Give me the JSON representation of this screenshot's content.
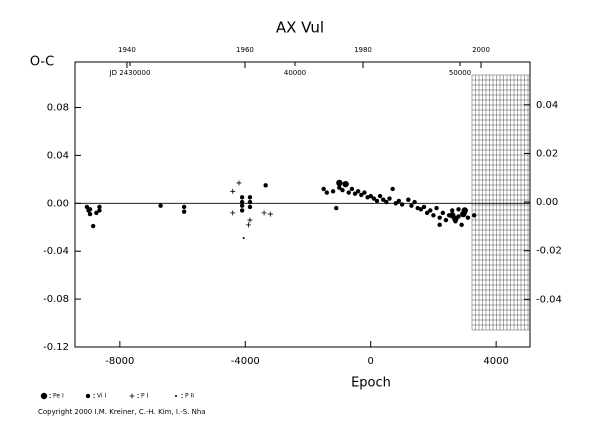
{
  "chart_data": {
    "type": "scatter",
    "title": "AX Vul",
    "ylabel": "O-C",
    "xlabel": "Epoch",
    "footer": "Copyright 2000 I.M. Kreiner, C.-H. Kim, I.-S. Nha",
    "xlim": [
      -9430,
      5080
    ],
    "xticks": [
      -8000,
      -4000,
      0,
      4000
    ],
    "ylim": [
      -0.12,
      0.118
    ],
    "yticks": [
      {
        "value": 0.08,
        "label": "0.08"
      },
      {
        "value": 0.04,
        "label": "0.04"
      },
      {
        "value": 0,
        "label": "0.00"
      },
      {
        "value": -0.04,
        "label": "-0.04"
      },
      {
        "value": -0.08,
        "label": "-0.08"
      },
      {
        "value": -0.12,
        "label": "-0.12"
      }
    ],
    "y2lim": [
      -0.0596,
      0.0576
    ],
    "y2ticks": [
      0.04,
      0.02,
      {
        "value": 0,
        "label": "0.00"
      },
      -0.02,
      -0.04
    ],
    "yearlim": [
      1931.2,
      2008.3
    ],
    "yearticks": [
      1940,
      1960,
      1980,
      2000
    ],
    "jdlim": [
      2426667,
      2454242
    ],
    "jdticks": [
      {
        "value": 2430000,
        "label": "JD 2430000"
      },
      {
        "value": 2440000,
        "label": "40000"
      },
      {
        "value": 2450000,
        "label": "50000"
      }
    ],
    "hline": 0,
    "series": [
      {
        "name": "Pe I",
        "color": "#000000",
        "marker": "large-dot",
        "x": [
          -1000,
          -800,
          2600,
          2950,
          3000,
          2700
        ],
        "values": [
          0.017,
          0.016,
          -0.01,
          -0.009,
          -0.006,
          -0.013
        ]
      },
      {
        "name": "Vi I",
        "color": "#000000",
        "marker": "dot",
        "x": [
          -9050,
          -9000,
          -8950,
          -8850,
          -8750,
          -8650,
          -8650,
          -8950,
          -6700,
          -5950,
          -5950,
          -4100,
          -4100,
          -4100,
          -3850,
          -3850,
          -3850,
          -3350,
          -4100,
          -1500,
          -1400,
          -1200,
          -1000,
          -900,
          -700,
          -600,
          -500,
          -400,
          -300,
          -200,
          -100,
          0,
          100,
          200,
          300,
          400,
          500,
          600,
          700,
          800,
          900,
          1000,
          1200,
          1300,
          1400,
          1600,
          1700,
          1800,
          1900,
          2000,
          2100,
          2200,
          2300,
          2400,
          2500,
          2600,
          2700,
          2800,
          2900,
          3000,
          3100,
          3300,
          2200,
          -1100,
          1500,
          2800
        ],
        "values": [
          -0.003,
          -0.006,
          -0.009,
          -0.019,
          -0.008,
          -0.003,
          -0.006,
          -0.005,
          -0.002,
          -0.003,
          -0.007,
          0.005,
          0.001,
          -0.002,
          0.005,
          0.001,
          -0.003,
          0.015,
          -0.006,
          0.012,
          0.009,
          0.01,
          0.013,
          0.011,
          0.009,
          0.012,
          0.008,
          0.01,
          0.007,
          0.009,
          0.005,
          0.006,
          0.004,
          0.002,
          0.006,
          0.003,
          0.001,
          0.004,
          0.012,
          0.0,
          0.002,
          -0.001,
          0.003,
          -0.002,
          0.001,
          -0.005,
          -0.003,
          -0.008,
          -0.006,
          -0.01,
          -0.004,
          -0.012,
          -0.008,
          -0.014,
          -0.01,
          -0.006,
          -0.015,
          -0.011,
          -0.018,
          -0.008,
          -0.012,
          -0.01,
          -0.018,
          -0.004,
          -0.004,
          -0.005
        ]
      },
      {
        "name": "P I",
        "color": "#000000",
        "marker": "plus",
        "x": [
          -4400,
          -4200,
          -3900,
          -4400,
          -3200,
          -3400,
          -3850
        ],
        "values": [
          0.01,
          0.017,
          -0.018,
          -0.008,
          -0.009,
          -0.008,
          -0.014
        ]
      },
      {
        "name": "P II",
        "color": "#000000",
        "marker": "small-dot",
        "x": [
          -4050
        ],
        "values": [
          -0.029
        ]
      }
    ]
  }
}
